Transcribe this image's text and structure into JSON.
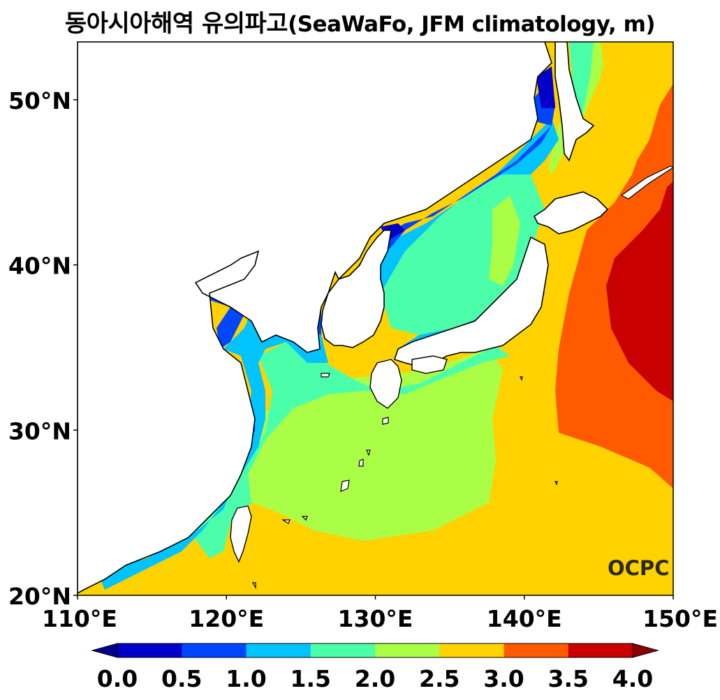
{
  "title": {
    "korean": "동아시아해역 유의파고",
    "detail": "(SeaWaFo, JFM climatology, m)"
  },
  "map": {
    "projection": "equirectangular",
    "lon_range": [
      110,
      150
    ],
    "lat_range": [
      20,
      53.5
    ],
    "lon_ticks": [
      {
        "value": 110,
        "label": "110°E"
      },
      {
        "value": 120,
        "label": "120°E"
      },
      {
        "value": 130,
        "label": "130°E"
      },
      {
        "value": 140,
        "label": "140°E"
      },
      {
        "value": 150,
        "label": "150°E"
      }
    ],
    "lat_ticks": [
      {
        "value": 20,
        "label": "20°N"
      },
      {
        "value": 30,
        "label": "30°N"
      },
      {
        "value": 40,
        "label": "40°N"
      },
      {
        "value": 50,
        "label": "50°N"
      }
    ],
    "logo_text": "OCPC"
  },
  "colorbar": {
    "levels": [
      "0.0",
      "0.5",
      "1.0",
      "1.5",
      "2.0",
      "2.5",
      "3.0",
      "3.5",
      "4.0"
    ],
    "colors": [
      "#0000c8",
      "#0046ff",
      "#00c3ff",
      "#4bffaa",
      "#aaff46",
      "#ffd200",
      "#ff5a00",
      "#c80000"
    ],
    "under_color": "#00008c",
    "over_color": "#8c0000",
    "extend": "both"
  }
}
